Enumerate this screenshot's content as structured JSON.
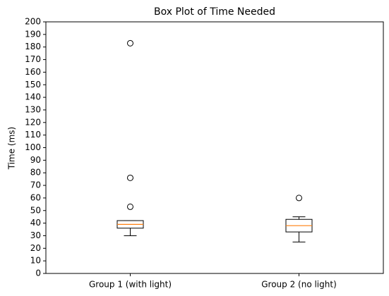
{
  "chart_data": {
    "type": "box",
    "title": "Box Plot of Time Needed",
    "y_label": "Time (ms)",
    "categories": [
      "Group 1 (with light)",
      "Group 2 (no light)"
    ],
    "boxes": [
      {
        "whisker_low": 30,
        "q1": 36,
        "median": 39,
        "q3": 42,
        "whisker_high": 42,
        "outliers": [
          53,
          76,
          183
        ]
      },
      {
        "whisker_low": 25,
        "q1": 33,
        "median": 38,
        "q3": 43,
        "whisker_high": 45,
        "outliers": [
          60
        ]
      }
    ],
    "median_color": "#ff7f0e",
    "ylim": [
      0,
      200
    ],
    "yticks": [
      0,
      10,
      20,
      30,
      40,
      50,
      60,
      70,
      80,
      90,
      100,
      110,
      120,
      130,
      140,
      150,
      160,
      170,
      180,
      190,
      200
    ],
    "grid": false
  }
}
